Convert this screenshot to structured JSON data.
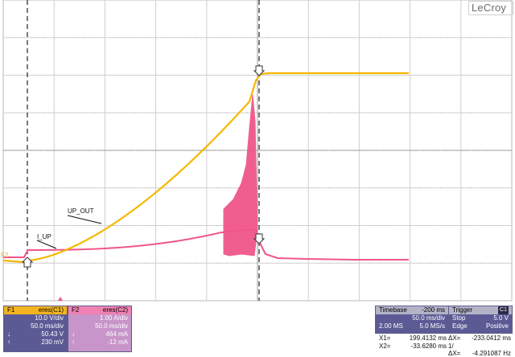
{
  "brand": "LeCroy",
  "channel_marker": "F2",
  "traces": {
    "up_out_label": "UP_OUT",
    "i_up_label": "I_UP",
    "up_out_color": "#f5b800",
    "i_up_color": "#f0568a"
  },
  "f1_panel": {
    "name": "F1",
    "source": "eres(C1)",
    "rows": [
      {
        "label": "",
        "value": "10.0 V/div"
      },
      {
        "label": "",
        "value": "50.0 ms/div"
      },
      {
        "label": "↓",
        "value": "50.43 V"
      },
      {
        "label": "↑",
        "value": "230 mV"
      }
    ]
  },
  "f2_panel": {
    "name": "F2",
    "source": "eres(C2)",
    "rows": [
      {
        "label": "",
        "value": "1.00 A/div"
      },
      {
        "label": "",
        "value": "50.0 ms/div"
      },
      {
        "label": "↓",
        "value": "464 mA"
      },
      {
        "label": "↑",
        "value": "-12 mA"
      }
    ]
  },
  "timebase": {
    "title": "Timebase",
    "offset": "-200 ms",
    "div": "50.0 ms/div",
    "samples": "2.00 MS",
    "rate": "5.0 MS/s"
  },
  "trigger": {
    "title": "Trigger",
    "badge": "C1",
    "mode": "Stop",
    "level": "5.0 V",
    "type": "Edge",
    "slope": "Positive"
  },
  "cursors": {
    "x1_label": "X1=",
    "x1": "199.4132 ms",
    "dx_label": "ΔX=",
    "dx": "-233.0412 ms",
    "x2_label": "X2=",
    "x2": "-33.6280 ms",
    "inv_label": "1/ΔX=",
    "inv": "-4.291087 Hz"
  }
}
